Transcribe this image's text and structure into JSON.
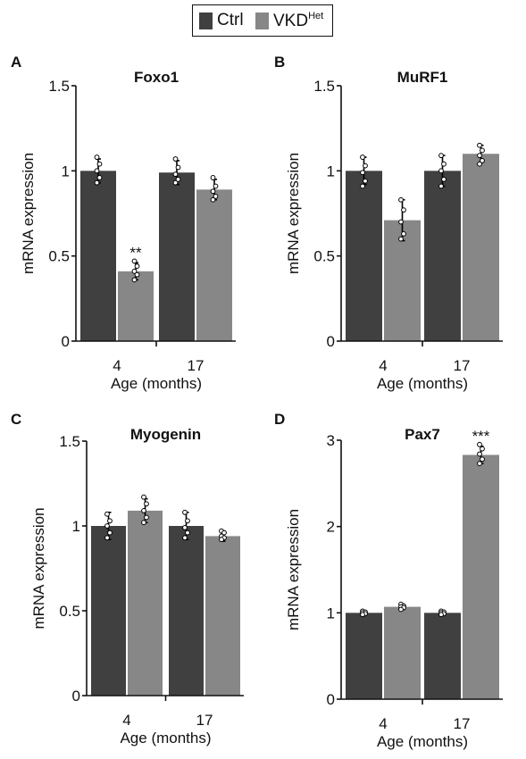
{
  "legend": {
    "items": [
      {
        "label": "Ctrl",
        "sup": "",
        "color": "#404040"
      },
      {
        "label": "VKD",
        "sup": "Het",
        "color": "#878787"
      }
    ]
  },
  "colors": {
    "ctrl": "#404040",
    "vkd": "#878787",
    "error": "#000000"
  },
  "chart_data": [
    {
      "panel": "A",
      "title": "Foxo1",
      "type": "bar",
      "xlabel": "Age (months)",
      "ylabel": "mRNA expression",
      "categories": [
        "4",
        "17"
      ],
      "ylim": [
        0,
        1.5
      ],
      "yticks": [
        0,
        0.5,
        1,
        1.5
      ],
      "ytick_labels": [
        "0",
        "0.5",
        "1",
        "1.5"
      ],
      "series": [
        {
          "name": "Ctrl",
          "values": [
            1.0,
            0.99
          ],
          "errors": [
            0.07,
            0.07
          ],
          "points": [
            [
              1.08,
              1.04,
              1.0,
              0.96,
              0.93
            ],
            [
              1.07,
              1.02,
              0.98,
              0.95,
              0.93
            ]
          ]
        },
        {
          "name": "VKD",
          "values": [
            0.41,
            0.89
          ],
          "errors": [
            0.05,
            0.06
          ],
          "points": [
            [
              0.47,
              0.44,
              0.41,
              0.39,
              0.36
            ],
            [
              0.96,
              0.91,
              0.88,
              0.85,
              0.83
            ]
          ]
        }
      ],
      "annotations": [
        {
          "series": 1,
          "category": 0,
          "text": "**"
        }
      ]
    },
    {
      "panel": "B",
      "title": "MuRF1",
      "type": "bar",
      "xlabel": "Age (months)",
      "ylabel": "mRNA expression",
      "categories": [
        "4",
        "17"
      ],
      "ylim": [
        0,
        1.5
      ],
      "yticks": [
        0,
        0.5,
        1,
        1.5
      ],
      "ytick_labels": [
        "0",
        "0.5",
        "1",
        "1.5"
      ],
      "series": [
        {
          "name": "Ctrl",
          "values": [
            1.0,
            1.0
          ],
          "errors": [
            0.08,
            0.09
          ],
          "points": [
            [
              1.08,
              1.03,
              0.99,
              0.94,
              0.91
            ],
            [
              1.09,
              1.04,
              1.0,
              0.95,
              0.91
            ]
          ]
        },
        {
          "name": "VKD",
          "values": [
            0.71,
            1.1
          ],
          "errors": [
            0.12,
            0.05
          ],
          "points": [
            [
              0.83,
              0.77,
              0.7,
              0.63,
              0.6
            ],
            [
              1.15,
              1.12,
              1.09,
              1.06,
              1.04
            ]
          ]
        }
      ],
      "annotations": []
    },
    {
      "panel": "C",
      "title": "Myogenin",
      "type": "bar",
      "xlabel": "Age (months)",
      "ylabel": "mRNA expression",
      "categories": [
        "4",
        "17"
      ],
      "ylim": [
        0,
        1.5
      ],
      "yticks": [
        0,
        0.5,
        1,
        1.5
      ],
      "ytick_labels": [
        "0",
        "0.5",
        "1",
        "1.5"
      ],
      "series": [
        {
          "name": "Ctrl",
          "values": [
            1.0,
            1.0
          ],
          "errors": [
            0.08,
            0.08
          ],
          "points": [
            [
              1.07,
              1.03,
              1.0,
              0.96,
              0.93
            ],
            [
              1.08,
              1.03,
              0.99,
              0.96,
              0.93
            ]
          ]
        },
        {
          "name": "VKD",
          "values": [
            1.09,
            0.94
          ],
          "errors": [
            0.07,
            0.03
          ],
          "points": [
            [
              1.17,
              1.13,
              1.09,
              1.05,
              1.02
            ],
            [
              0.97,
              0.96,
              0.94,
              0.93,
              0.92
            ]
          ]
        }
      ],
      "annotations": []
    },
    {
      "panel": "D",
      "title": "Pax7",
      "type": "bar",
      "xlabel": "Age (months)",
      "ylabel": "mRNA expression",
      "categories": [
        "4",
        "17"
      ],
      "ylim": [
        0,
        3
      ],
      "yticks": [
        0,
        1,
        2,
        3
      ],
      "ytick_labels": [
        "0",
        "1",
        "2",
        "3"
      ],
      "series": [
        {
          "name": "Ctrl",
          "values": [
            1.0,
            1.0
          ],
          "errors": [
            0.02,
            0.02
          ],
          "points": [
            [
              1.02,
              1.01,
              1.0,
              0.99,
              0.98
            ],
            [
              1.02,
              1.01,
              1.0,
              0.99,
              0.98
            ]
          ]
        },
        {
          "name": "VKD",
          "values": [
            1.07,
            2.83
          ],
          "errors": [
            0.03,
            0.1
          ],
          "points": [
            [
              1.1,
              1.08,
              1.07,
              1.06,
              1.04
            ],
            [
              2.95,
              2.9,
              2.84,
              2.78,
              2.73
            ]
          ]
        }
      ],
      "annotations": [
        {
          "series": 1,
          "category": 1,
          "text": "***"
        }
      ]
    }
  ]
}
